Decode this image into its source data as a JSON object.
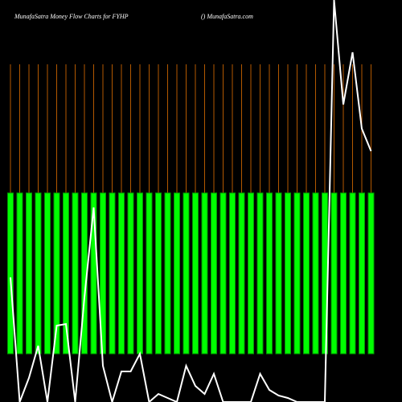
{
  "chart_data": {
    "type": "moneyflow",
    "title": "MunafaSatra  Money Flow  Charts for FYHP",
    "subtitle": "() MunafaSatra.com",
    "ylim": [
      0,
      100
    ],
    "series": [
      {
        "kind": "bar",
        "color": "#00ff00",
        "base": 12,
        "values": [
          52,
          52,
          52,
          52,
          52,
          52,
          52,
          52,
          52,
          52,
          52,
          52,
          52,
          52,
          52,
          52,
          52,
          52,
          52,
          52,
          52,
          52,
          52,
          52,
          52,
          52,
          52,
          52,
          52,
          52,
          52,
          52,
          52,
          52,
          52,
          52,
          52,
          52,
          52,
          52
        ]
      },
      {
        "kind": "line",
        "color": "#ffffff",
        "values": [
          31,
          0,
          6,
          14,
          0,
          19,
          19.4,
          0,
          26,
          48.4,
          9,
          0,
          7.6,
          7.6,
          12,
          0,
          2,
          1,
          0,
          9,
          4,
          2,
          7,
          0,
          0,
          0,
          0,
          7,
          3,
          1.6,
          1,
          0,
          0,
          0,
          0,
          100,
          74,
          87,
          68,
          62.4
        ]
      }
    ],
    "guide_color": "#b35900"
  }
}
